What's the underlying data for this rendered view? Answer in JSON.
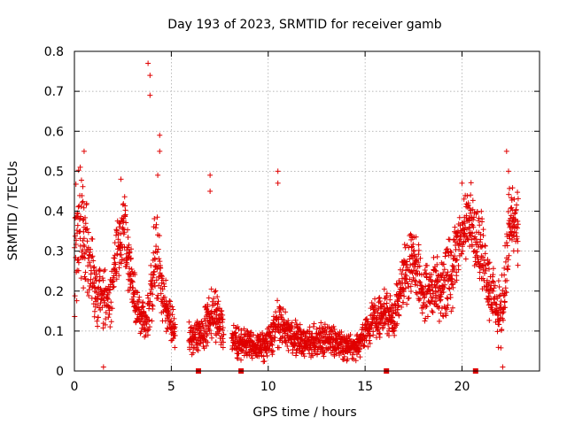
{
  "chart_data": {
    "type": "scatter",
    "title": "Day 193 of 2023, SRMTID for receiver gamb",
    "xlabel": "GPS time / hours",
    "ylabel": "SRMTID / TECUs",
    "xlim": [
      0,
      24
    ],
    "ylim": [
      0,
      0.8
    ],
    "xticks": [
      0,
      5,
      10,
      15,
      20
    ],
    "yticks": [
      0,
      0.1,
      0.2,
      0.3,
      0.4,
      0.5,
      0.6,
      0.7,
      0.8
    ],
    "xtick_labels": [
      "0",
      "5",
      "10",
      "15",
      "20"
    ],
    "ytick_labels": [
      "0",
      "0.1",
      "0.2",
      "0.3",
      "0.4",
      "0.5",
      "0.6",
      "0.7",
      "0.8"
    ],
    "grid": true,
    "marker": "+",
    "color": "#e00000",
    "zero_markers_x": [
      6.4,
      8.6,
      16.1,
      20.7
    ],
    "series": [
      {
        "name": "SRMTID",
        "trend": {
          "x": [
            0.0,
            0.3,
            0.6,
            1.0,
            1.4,
            1.8,
            2.2,
            2.6,
            3.0,
            3.4,
            3.8,
            4.2,
            4.6,
            5.0,
            5.5,
            6.0,
            6.5,
            7.0,
            7.5,
            8.0,
            8.5,
            9.0,
            9.5,
            10.0,
            10.5,
            11.0,
            11.5,
            12.0,
            12.5,
            13.0,
            13.5,
            14.0,
            14.5,
            15.0,
            15.5,
            16.0,
            16.5,
            17.0,
            17.5,
            18.0,
            18.5,
            19.0,
            19.5,
            20.0,
            20.5,
            21.0,
            21.5,
            22.0,
            22.5,
            22.9
          ],
          "y": [
            0.27,
            0.4,
            0.3,
            0.22,
            0.18,
            0.16,
            0.32,
            0.36,
            0.2,
            0.13,
            0.14,
            0.3,
            0.18,
            0.12,
            0.09,
            0.08,
            0.09,
            0.14,
            0.13,
            0.08,
            0.07,
            0.07,
            0.06,
            0.07,
            0.12,
            0.1,
            0.08,
            0.07,
            0.08,
            0.07,
            0.08,
            0.06,
            0.06,
            0.09,
            0.13,
            0.15,
            0.12,
            0.24,
            0.28,
            0.19,
            0.22,
            0.21,
            0.25,
            0.35,
            0.38,
            0.3,
            0.2,
            0.12,
            0.38,
            0.33
          ],
          "spread": [
            0.1,
            0.12,
            0.09,
            0.07,
            0.06,
            0.06,
            0.07,
            0.07,
            0.05,
            0.04,
            0.05,
            0.09,
            0.05,
            0.04,
            0.03,
            0.03,
            0.03,
            0.05,
            0.04,
            0.03,
            0.03,
            0.03,
            0.025,
            0.03,
            0.04,
            0.03,
            0.03,
            0.025,
            0.03,
            0.03,
            0.03,
            0.025,
            0.025,
            0.03,
            0.04,
            0.04,
            0.04,
            0.06,
            0.06,
            0.05,
            0.06,
            0.06,
            0.07,
            0.06,
            0.06,
            0.07,
            0.06,
            0.06,
            0.08,
            0.07
          ]
        },
        "peaks": [
          {
            "x": 0.5,
            "y": 0.55
          },
          {
            "x": 0.3,
            "y": 0.51
          },
          {
            "x": 2.4,
            "y": 0.48
          },
          {
            "x": 3.8,
            "y": 0.77
          },
          {
            "x": 3.9,
            "y": 0.74
          },
          {
            "x": 3.9,
            "y": 0.69
          },
          {
            "x": 4.4,
            "y": 0.59
          },
          {
            "x": 4.4,
            "y": 0.55
          },
          {
            "x": 4.3,
            "y": 0.49
          },
          {
            "x": 7.0,
            "y": 0.49
          },
          {
            "x": 7.0,
            "y": 0.45
          },
          {
            "x": 10.5,
            "y": 0.5
          },
          {
            "x": 10.5,
            "y": 0.47
          },
          {
            "x": 22.3,
            "y": 0.55
          },
          {
            "x": 22.4,
            "y": 0.5
          },
          {
            "x": 20.0,
            "y": 0.47
          },
          {
            "x": 1.5,
            "y": 0.01
          },
          {
            "x": 22.1,
            "y": 0.01
          }
        ]
      }
    ]
  }
}
